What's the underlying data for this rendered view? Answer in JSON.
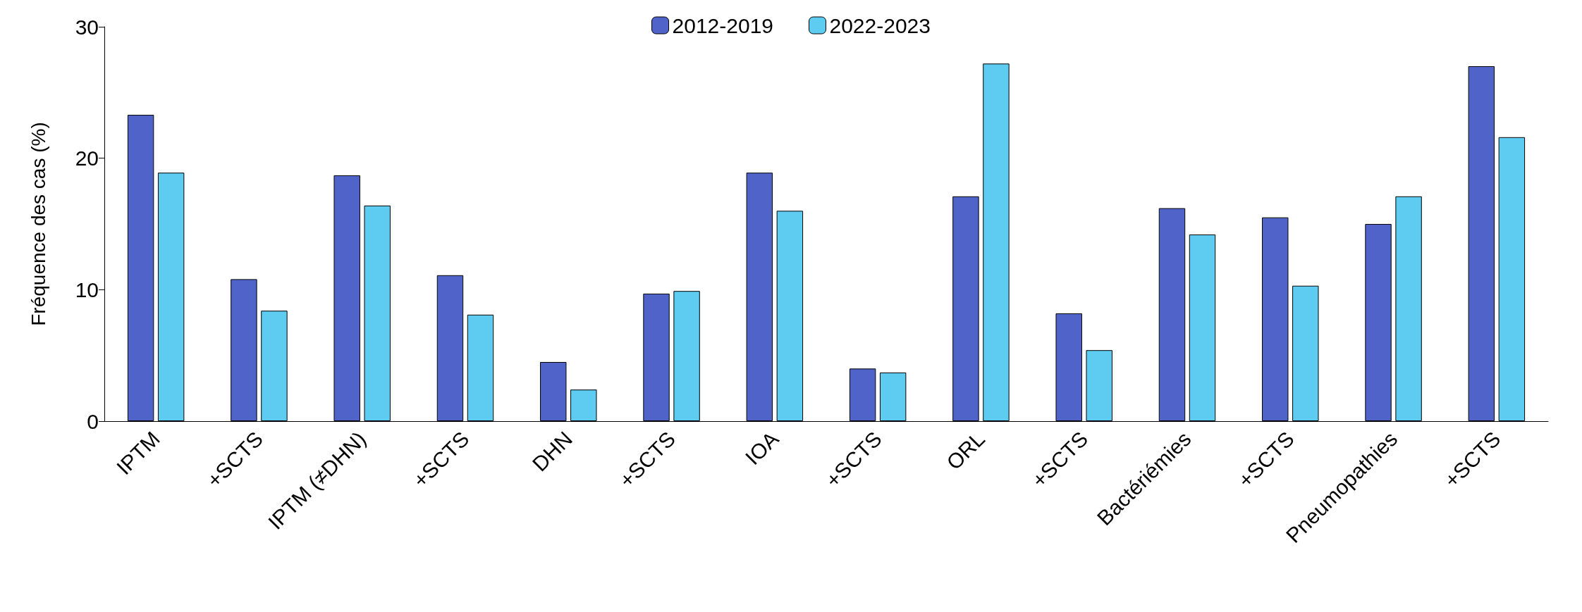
{
  "chart_data": {
    "type": "bar",
    "ylabel": "Fréquence des cas (%)",
    "categories": [
      "IPTM",
      "+SCTS",
      "IPTM (≠DHN)",
      "+SCTS",
      "DHN",
      "+SCTS",
      "IOA",
      "+SCTS",
      "ORL",
      "+SCTS",
      "Bactériémies",
      "+SCTS",
      "Pneumopathies",
      "+SCTS"
    ],
    "series": [
      {
        "name": "2012-2019",
        "color": "#4f63c8",
        "values": [
          23.3,
          10.8,
          18.7,
          11.1,
          4.5,
          9.7,
          18.9,
          4.0,
          17.1,
          8.2,
          16.2,
          15.5,
          15.0,
          27.0
        ]
      },
      {
        "name": "2022-2023",
        "color": "#5ecbf0",
        "values": [
          18.9,
          8.4,
          16.4,
          8.1,
          2.4,
          9.9,
          16.0,
          3.7,
          27.2,
          5.4,
          14.2,
          10.3,
          17.1,
          21.6
        ]
      }
    ],
    "ylim": [
      0,
      30
    ],
    "yticks": [
      0,
      10,
      20,
      30
    ],
    "grid": false,
    "legend": "top"
  }
}
